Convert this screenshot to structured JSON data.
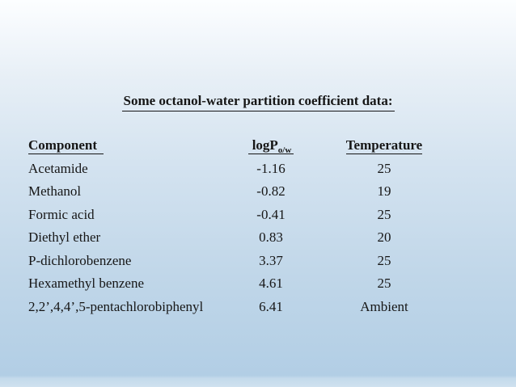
{
  "slide": {
    "title": "Some octanol-water partition coefficient data:",
    "table": {
      "headers": {
        "component": "Component",
        "logp_main": "logP",
        "logp_sub": "o/w",
        "temperature": "Temperature"
      },
      "rows": [
        {
          "component": "Acetamide",
          "logp": "-1.16",
          "temperature": "25"
        },
        {
          "component": "Methanol",
          "logp": "-0.82",
          "temperature": "19"
        },
        {
          "component": "Formic acid",
          "logp": "-0.41",
          "temperature": "25"
        },
        {
          "component": "Diethyl ether",
          "logp": "0.83",
          "temperature": "20"
        },
        {
          "component": "P-dichlorobenzene",
          "logp": "3.37",
          "temperature": "25"
        },
        {
          "component": "Hexamethyl benzene",
          "logp": "4.61",
          "temperature": "25"
        },
        {
          "component": "2,2’,4,4’,5-pentachlorobiphenyl",
          "logp": "6.41",
          "temperature": "Ambient"
        }
      ]
    },
    "colors": {
      "text": "#161616",
      "background_top": "#fcfeff",
      "background_middle": "#c9dcec",
      "background_bottom": "#b2cee5"
    }
  },
  "chart_data": {
    "type": "table",
    "title": "Some octanol-water partition coefficient data:",
    "columns": [
      "Component",
      "logP o/w",
      "Temperature"
    ],
    "rows": [
      [
        "Acetamide",
        -1.16,
        "25"
      ],
      [
        "Methanol",
        -0.82,
        "19"
      ],
      [
        "Formic acid",
        -0.41,
        "25"
      ],
      [
        "Diethyl ether",
        0.83,
        "20"
      ],
      [
        "P-dichlorobenzene",
        3.37,
        "25"
      ],
      [
        "Hexamethyl benzene",
        4.61,
        "25"
      ],
      [
        "2,2’,4,4’,5-pentachlorobiphenyl",
        6.41,
        "Ambient"
      ]
    ]
  }
}
